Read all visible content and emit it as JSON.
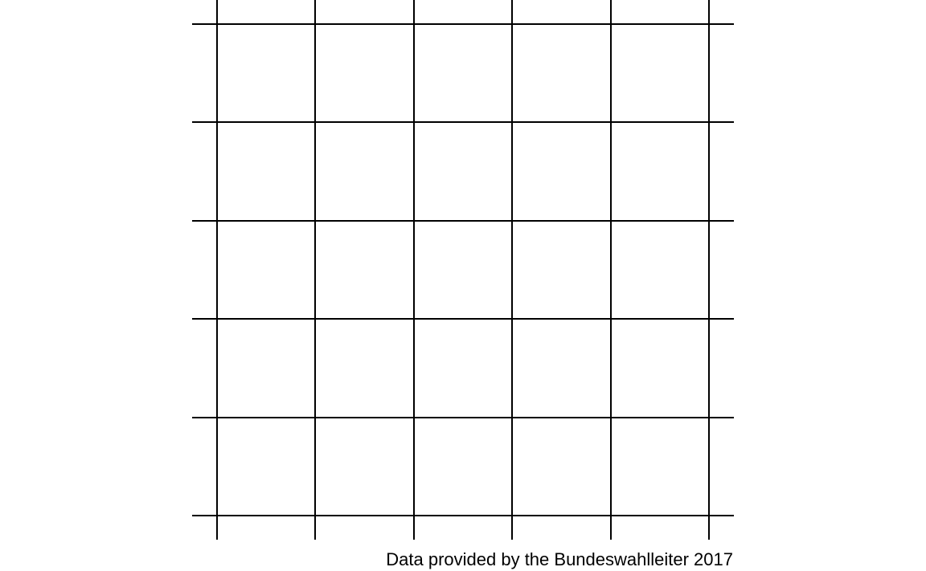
{
  "caption": "Data provided by the Bundeswahlleiter 2017",
  "chart_data": {
    "type": "heatmap",
    "grid": true,
    "vertical_gridlines": 6,
    "horizontal_gridlines": 6,
    "values": [],
    "title": "",
    "xlabel": "",
    "ylabel": ""
  },
  "colors": {
    "grid": "#000000",
    "background": "#ffffff",
    "text": "#000000"
  }
}
